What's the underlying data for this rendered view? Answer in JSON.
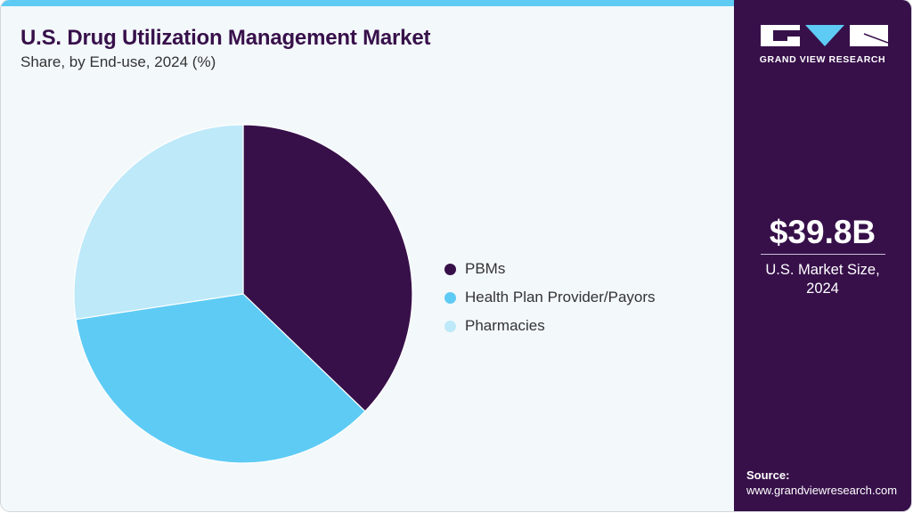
{
  "header": {
    "title": "U.S. Drug Utilization Management Market",
    "subtitle": "Share, by End-use, 2024 (%)"
  },
  "legend": [
    {
      "label": "PBMs",
      "color": "#37104a"
    },
    {
      "label": "Health Plan Provider/Payors",
      "color": "#5ecbf5"
    },
    {
      "label": "Pharmacies",
      "color": "#bde9f9"
    }
  ],
  "sidebar": {
    "brand": "GRAND VIEW RESEARCH",
    "market_value": "$39.8B",
    "market_label_line1": "U.S. Market Size,",
    "market_label_line2": "2024",
    "source_label": "Source:",
    "source_url": "www.grandviewresearch.com"
  },
  "colors": {
    "accent_dark": "#37104a",
    "accent_light": "#5ecbf5",
    "accent_pale": "#bde9f9",
    "background": "#f3f8fb"
  },
  "chart_data": {
    "type": "pie",
    "title": "U.S. Drug Utilization Management Market",
    "subtitle": "Share, by End-use, 2024 (%)",
    "categories": [
      "PBMs",
      "Health Plan Provider/Payors",
      "Pharmacies"
    ],
    "values": [
      37.2,
      35.4,
      27.4
    ],
    "colors": [
      "#37104a",
      "#5ecbf5",
      "#bde9f9"
    ],
    "start_angle_deg": 0,
    "direction": "clockwise",
    "legend_position": "right"
  }
}
